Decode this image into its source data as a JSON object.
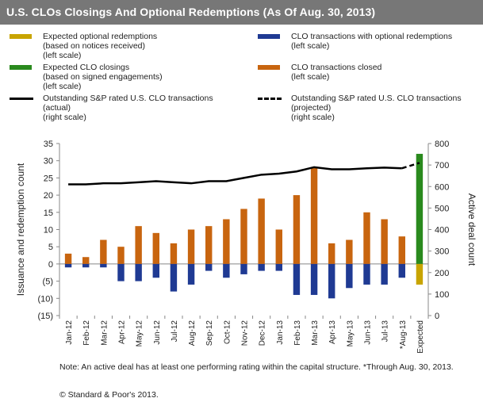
{
  "title": "U.S. CLOs Closings And Optional Redemptions (As Of Aug. 30, 2013)",
  "legend": [
    {
      "key": "expected_optional",
      "lines": [
        "Expected optional redemptions",
        "(based on notices received)",
        "(left scale)"
      ],
      "color": "#c8a400",
      "kind": "bar"
    },
    {
      "key": "clo_optional",
      "lines": [
        "CLO transactions with optional redemptions",
        "(left scale)"
      ],
      "color": "#1f3a93",
      "kind": "bar"
    },
    {
      "key": "expected_clo",
      "lines": [
        "Expected CLO closings",
        "(based on signed engagements)",
        "(left scale)"
      ],
      "color": "#2a8a1e",
      "kind": "bar"
    },
    {
      "key": "clo_closed",
      "lines": [
        "CLO transactions closed",
        "(left scale)"
      ],
      "color": "#c8650f",
      "kind": "bar"
    },
    {
      "key": "outstanding_actual",
      "lines": [
        "Outstanding S&P rated U.S. CLO transactions",
        "(actual)",
        "(right scale)"
      ],
      "color": "#000000",
      "kind": "line"
    },
    {
      "key": "outstanding_projected",
      "lines": [
        "Outstanding S&P rated U.S. CLO transactions",
        "(projected)",
        "(right scale)"
      ],
      "color": "#000000",
      "kind": "dash"
    }
  ],
  "chart_data": {
    "type": "bar",
    "categories": [
      "Jan-12",
      "Feb-12",
      "Mar-12",
      "Apr-12",
      "May-12",
      "Jun-12",
      "Jul-12",
      "Aug-12",
      "Sep-12",
      "Oct-12",
      "Nov-12",
      "Dec-12",
      "Jan-13",
      "Feb-13",
      "Mar-13",
      "Apr-13",
      "May-13",
      "Jun-13",
      "Jul-13",
      "*Aug-13",
      "Expected"
    ],
    "series": [
      {
        "name": "CLO transactions closed",
        "axis": "left",
        "color": "#c8650f",
        "values": [
          3,
          2,
          7,
          5,
          11,
          9,
          6,
          10,
          11,
          13,
          16,
          19,
          10,
          20,
          28,
          6,
          7,
          15,
          13,
          8,
          null
        ]
      },
      {
        "name": "CLO transactions with optional redemptions",
        "axis": "left",
        "color": "#1f3a93",
        "values": [
          -1,
          -1,
          -1,
          -5,
          -5,
          -4,
          -8,
          -6,
          -2,
          -4,
          -3,
          -2,
          -2,
          -9,
          -9,
          -10,
          -7,
          -6,
          -6,
          -4,
          null
        ]
      },
      {
        "name": "Expected CLO closings",
        "axis": "left",
        "color": "#2a8a1e",
        "values": [
          null,
          null,
          null,
          null,
          null,
          null,
          null,
          null,
          null,
          null,
          null,
          null,
          null,
          null,
          null,
          null,
          null,
          null,
          null,
          null,
          32
        ]
      },
      {
        "name": "Expected optional redemptions",
        "axis": "left",
        "color": "#c8a400",
        "values": [
          null,
          null,
          null,
          null,
          null,
          null,
          null,
          null,
          null,
          null,
          null,
          null,
          null,
          null,
          null,
          null,
          null,
          null,
          null,
          null,
          -6
        ]
      },
      {
        "name": "Outstanding S&P rated U.S. CLO transactions (actual)",
        "axis": "right",
        "color": "#000000",
        "kind": "line",
        "values": [
          610,
          610,
          615,
          615,
          620,
          625,
          620,
          615,
          625,
          625,
          640,
          655,
          660,
          670,
          690,
          680,
          680,
          685,
          688,
          685,
          null
        ]
      },
      {
        "name": "Outstanding S&P rated U.S. CLO transactions (projected)",
        "axis": "right",
        "color": "#000000",
        "kind": "dash",
        "values": [
          null,
          null,
          null,
          null,
          null,
          null,
          null,
          null,
          null,
          null,
          null,
          null,
          null,
          null,
          null,
          null,
          null,
          null,
          null,
          685,
          710
        ]
      }
    ],
    "ylabel": "Issuance and redemption count",
    "y2label": "Active deal count",
    "ylim": [
      -15,
      35
    ],
    "y2lim": [
      0,
      800
    ],
    "yticks": [
      "35",
      "30",
      "25",
      "20",
      "15",
      "10",
      "5",
      "0",
      "(5)",
      "(10)",
      "(15)"
    ],
    "y2ticks": [
      "800",
      "700",
      "600",
      "500",
      "400",
      "300",
      "200",
      "100",
      "0"
    ]
  },
  "note": "Note: An active deal has at least one performing rating within the capital structure. *Through Aug. 30, 2013.",
  "copyright": "© Standard & Poor's 2013."
}
